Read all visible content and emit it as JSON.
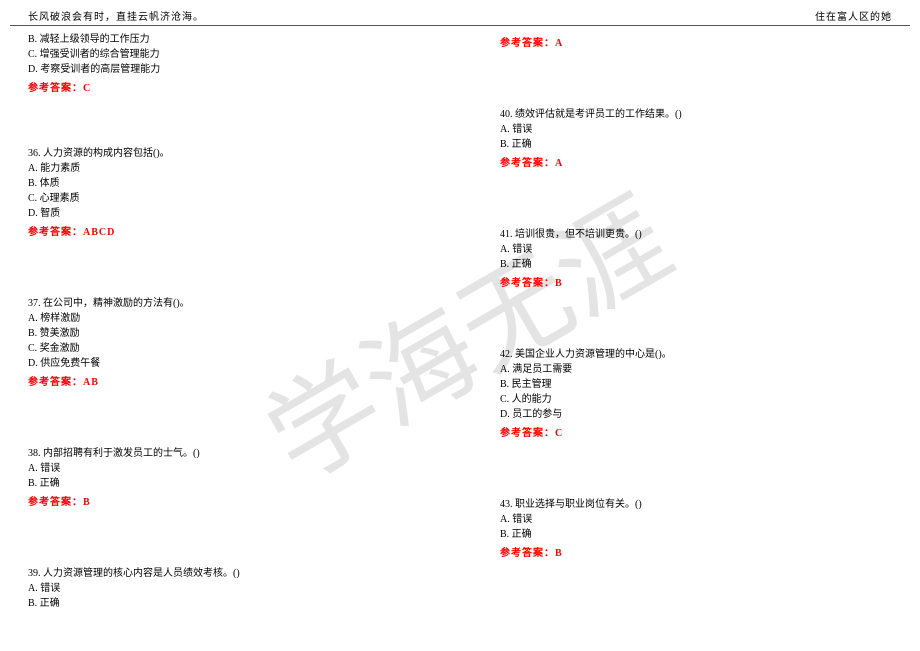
{
  "header": {
    "left": "长风破浪会有时，直挂云帆济沧海。",
    "right": "住在富人区的她"
  },
  "watermark": {
    "text": "学海无涯",
    "color": "#e4e4e4",
    "font_size": 110,
    "rotate_deg": 30,
    "font_family": "KaiTi, 楷体, serif"
  },
  "answer_label": "参考答案：",
  "left_col": {
    "q35_tail": {
      "options": [
        "B. 减轻上级领导的工作压力",
        "C. 增强受训者的综合管理能力",
        "D. 考察受训者的高层管理能力"
      ],
      "answer": "C"
    },
    "q36": {
      "title": "36. 人力资源的构成内容包括()。",
      "options": [
        "A. 能力素质",
        "B. 体质",
        "C. 心理素质",
        "D. 智质"
      ],
      "answer": "ABCD"
    },
    "q37": {
      "title": "37. 在公司中，精神激励的方法有()。",
      "options": [
        "A. 榜样激励",
        "B. 赞美激励",
        "C. 奖金激励",
        "D. 供应免费午餐"
      ],
      "answer": "AB"
    },
    "q38": {
      "title": "38. 内部招聘有利于激发员工的士气。()",
      "options": [
        "A. 错误",
        "B. 正确"
      ],
      "answer": "B"
    },
    "q39": {
      "title": "39. 人力资源管理的核心内容是人员绩效考核。()",
      "options": [
        "A. 错误",
        "B. 正确"
      ],
      "answer": ""
    }
  },
  "right_col": {
    "q39_ans": "A",
    "q40": {
      "title": "40. 绩效评估就是考评员工的工作结果。()",
      "options": [
        "A. 错误",
        "B. 正确"
      ],
      "answer": "A"
    },
    "q41": {
      "title": "41. 培训很贵，但不培训更贵。()",
      "options": [
        "A. 错误",
        "B. 正确"
      ],
      "answer": "B"
    },
    "q42": {
      "title": "42. 美国企业人力资源管理的中心是()。",
      "options": [
        "A. 满足员工需要",
        "B. 民主管理",
        "C. 人的能力",
        "D. 员工的参与"
      ],
      "answer": "C"
    },
    "q43": {
      "title": "43. 职业选择与职业岗位有关。()",
      "options": [
        "A. 错误",
        "B. 正确"
      ],
      "answer": "B"
    }
  }
}
